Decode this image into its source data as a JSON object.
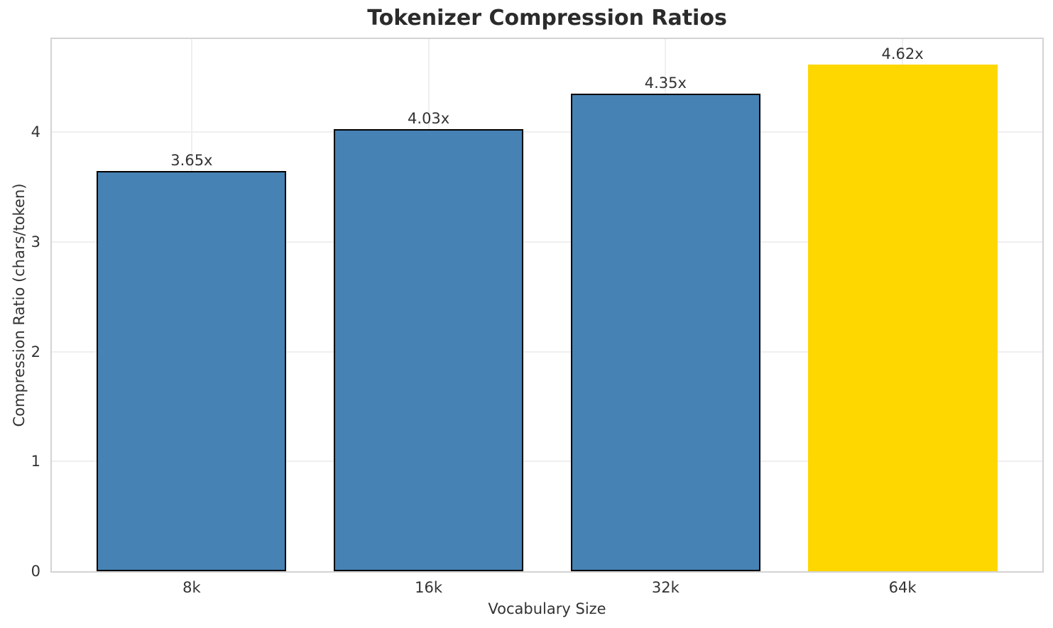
{
  "chart_data": {
    "type": "bar",
    "title": "Tokenizer Compression Ratios",
    "xlabel": "Vocabulary Size",
    "ylabel": "Compression Ratio (chars/token)",
    "categories": [
      "8k",
      "16k",
      "32k",
      "64k"
    ],
    "values": [
      3.65,
      4.03,
      4.35,
      4.62
    ],
    "bar_labels": [
      "3.65x",
      "4.03x",
      "4.35x",
      "4.62x"
    ],
    "bar_fill_colors": [
      "#4682B4",
      "#4682B4",
      "#4682B4",
      "#FFD700"
    ],
    "bar_edge_colors": [
      "#000000",
      "#000000",
      "#000000",
      "none"
    ],
    "highlighted_category": "64k",
    "ylim": [
      0,
      4.85
    ],
    "yticks": [
      "0",
      "1",
      "2",
      "3",
      "4"
    ],
    "bar_width_fraction": 0.8,
    "grid": true,
    "legend": "none"
  },
  "colors": {
    "background": "#ffffff",
    "grid": "#efefef",
    "spine": "#d3d3d3",
    "text": "#333333",
    "title_text": "#2b2b2b",
    "bar_default": "#4682B4",
    "bar_highlight": "#FFD700",
    "bar_edge": "#000000"
  }
}
